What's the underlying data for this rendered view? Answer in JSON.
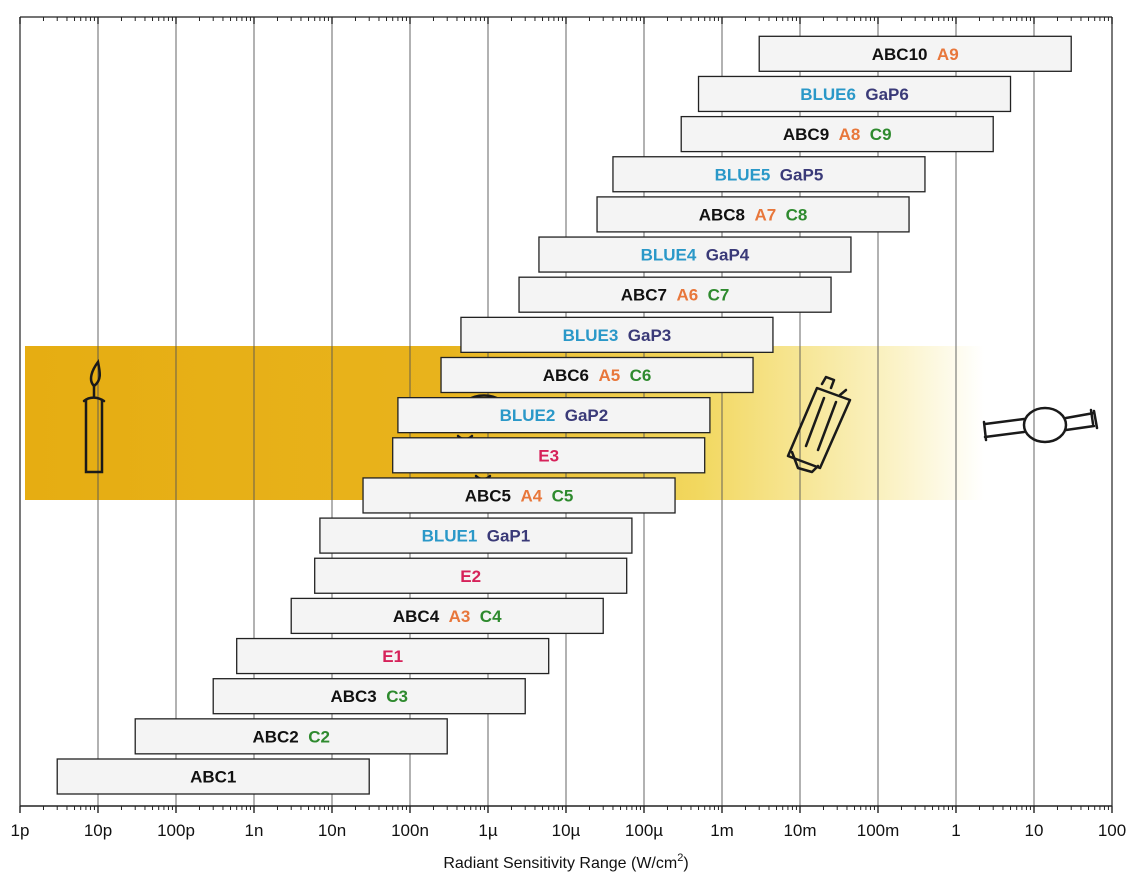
{
  "chart_data": {
    "type": "bar",
    "orientation": "horizontal-range",
    "title": "",
    "xlabel": "Radiant Sensitivity Range (W/cm",
    "xlabel_superscript": "2",
    "xlabel_suffix": ")",
    "xscale": "log",
    "xlim": [
      "1p",
      "100"
    ],
    "x_ticks": [
      "1p",
      "10p",
      "100p",
      "1n",
      "10n",
      "100n",
      "1µ",
      "10µ",
      "100µ",
      "1m",
      "10m",
      "100m",
      "1",
      "10",
      "100"
    ],
    "grid": "vertical",
    "ranges": [
      {
        "min": "3p",
        "max": "30n",
        "labels": [
          {
            "text": "ABC1",
            "color": "#111111"
          }
        ]
      },
      {
        "min": "30p",
        "max": "300n",
        "labels": [
          {
            "text": "ABC2",
            "color": "#111111"
          },
          {
            "text": "C2",
            "color": "#2e8a2e"
          }
        ]
      },
      {
        "min": "300p",
        "max": "3µ",
        "labels": [
          {
            "text": "ABC3",
            "color": "#111111"
          },
          {
            "text": "C3",
            "color": "#2e8a2e"
          }
        ]
      },
      {
        "min": "600p",
        "max": "6µ",
        "labels": [
          {
            "text": "E1",
            "color": "#d6225a"
          }
        ]
      },
      {
        "min": "3n",
        "max": "30µ",
        "labels": [
          {
            "text": "ABC4",
            "color": "#111111"
          },
          {
            "text": "A3",
            "color": "#e8773b"
          },
          {
            "text": "C4",
            "color": "#2e8a2e"
          }
        ]
      },
      {
        "min": "6n",
        "max": "60µ",
        "labels": [
          {
            "text": "E2",
            "color": "#d6225a"
          }
        ]
      },
      {
        "min": "7n",
        "max": "70µ",
        "labels": [
          {
            "text": "BLUE1",
            "color": "#2a98c8"
          },
          {
            "text": "GaP1",
            "color": "#3a3a78"
          }
        ]
      },
      {
        "min": "25n",
        "max": "250µ",
        "labels": [
          {
            "text": "ABC5",
            "color": "#111111"
          },
          {
            "text": "A4",
            "color": "#e8773b"
          },
          {
            "text": "C5",
            "color": "#2e8a2e"
          }
        ]
      },
      {
        "min": "60n",
        "max": "600µ",
        "labels": [
          {
            "text": "E3",
            "color": "#d6225a"
          }
        ]
      },
      {
        "min": "70n",
        "max": "700µ",
        "labels": [
          {
            "text": "BLUE2",
            "color": "#2a98c8"
          },
          {
            "text": "GaP2",
            "color": "#3a3a78"
          }
        ]
      },
      {
        "min": "250n",
        "max": "2.5m",
        "labels": [
          {
            "text": "ABC6",
            "color": "#111111"
          },
          {
            "text": "A5",
            "color": "#e8773b"
          },
          {
            "text": "C6",
            "color": "#2e8a2e"
          }
        ]
      },
      {
        "min": "450n",
        "max": "4.5m",
        "labels": [
          {
            "text": "BLUE3",
            "color": "#2a98c8"
          },
          {
            "text": "GaP3",
            "color": "#3a3a78"
          }
        ]
      },
      {
        "min": "2.5µ",
        "max": "25m",
        "labels": [
          {
            "text": "ABC7",
            "color": "#111111"
          },
          {
            "text": "A6",
            "color": "#e8773b"
          },
          {
            "text": "C7",
            "color": "#2e8a2e"
          }
        ]
      },
      {
        "min": "4.5µ",
        "max": "45m",
        "labels": [
          {
            "text": "BLUE4",
            "color": "#2a98c8"
          },
          {
            "text": "GaP4",
            "color": "#3a3a78"
          }
        ]
      },
      {
        "min": "25µ",
        "max": "250m",
        "labels": [
          {
            "text": "ABC8",
            "color": "#111111"
          },
          {
            "text": "A7",
            "color": "#e8773b"
          },
          {
            "text": "C8",
            "color": "#2e8a2e"
          }
        ]
      },
      {
        "min": "40µ",
        "max": "400m",
        "labels": [
          {
            "text": "BLUE5",
            "color": "#2a98c8"
          },
          {
            "text": "GaP5",
            "color": "#3a3a78"
          }
        ]
      },
      {
        "min": "300µ",
        "max": "3",
        "labels": [
          {
            "text": "ABC9",
            "color": "#111111"
          },
          {
            "text": "A8",
            "color": "#e8773b"
          },
          {
            "text": "C9",
            "color": "#2e8a2e"
          }
        ]
      },
      {
        "min": "500µ",
        "max": "5",
        "labels": [
          {
            "text": "BLUE6",
            "color": "#2a98c8"
          },
          {
            "text": "GaP6",
            "color": "#3a3a78"
          }
        ]
      },
      {
        "min": "3m",
        "max": "30",
        "labels": [
          {
            "text": "ABC10",
            "color": "#111111"
          },
          {
            "text": "A9",
            "color": "#e8773b"
          }
        ]
      }
    ],
    "background_band": {
      "from": "1p",
      "to": "100",
      "color_start": "#e8b21c",
      "color_end": "#ffffff"
    },
    "illustrations": [
      "candle-icon",
      "mouse-icon",
      "fluorescent-lamp-icon",
      "light-bulb-icon"
    ],
    "colors": {
      "bar_fill": "#f4f4f4",
      "bar_stroke": "#222222",
      "grid": "#555555"
    }
  }
}
